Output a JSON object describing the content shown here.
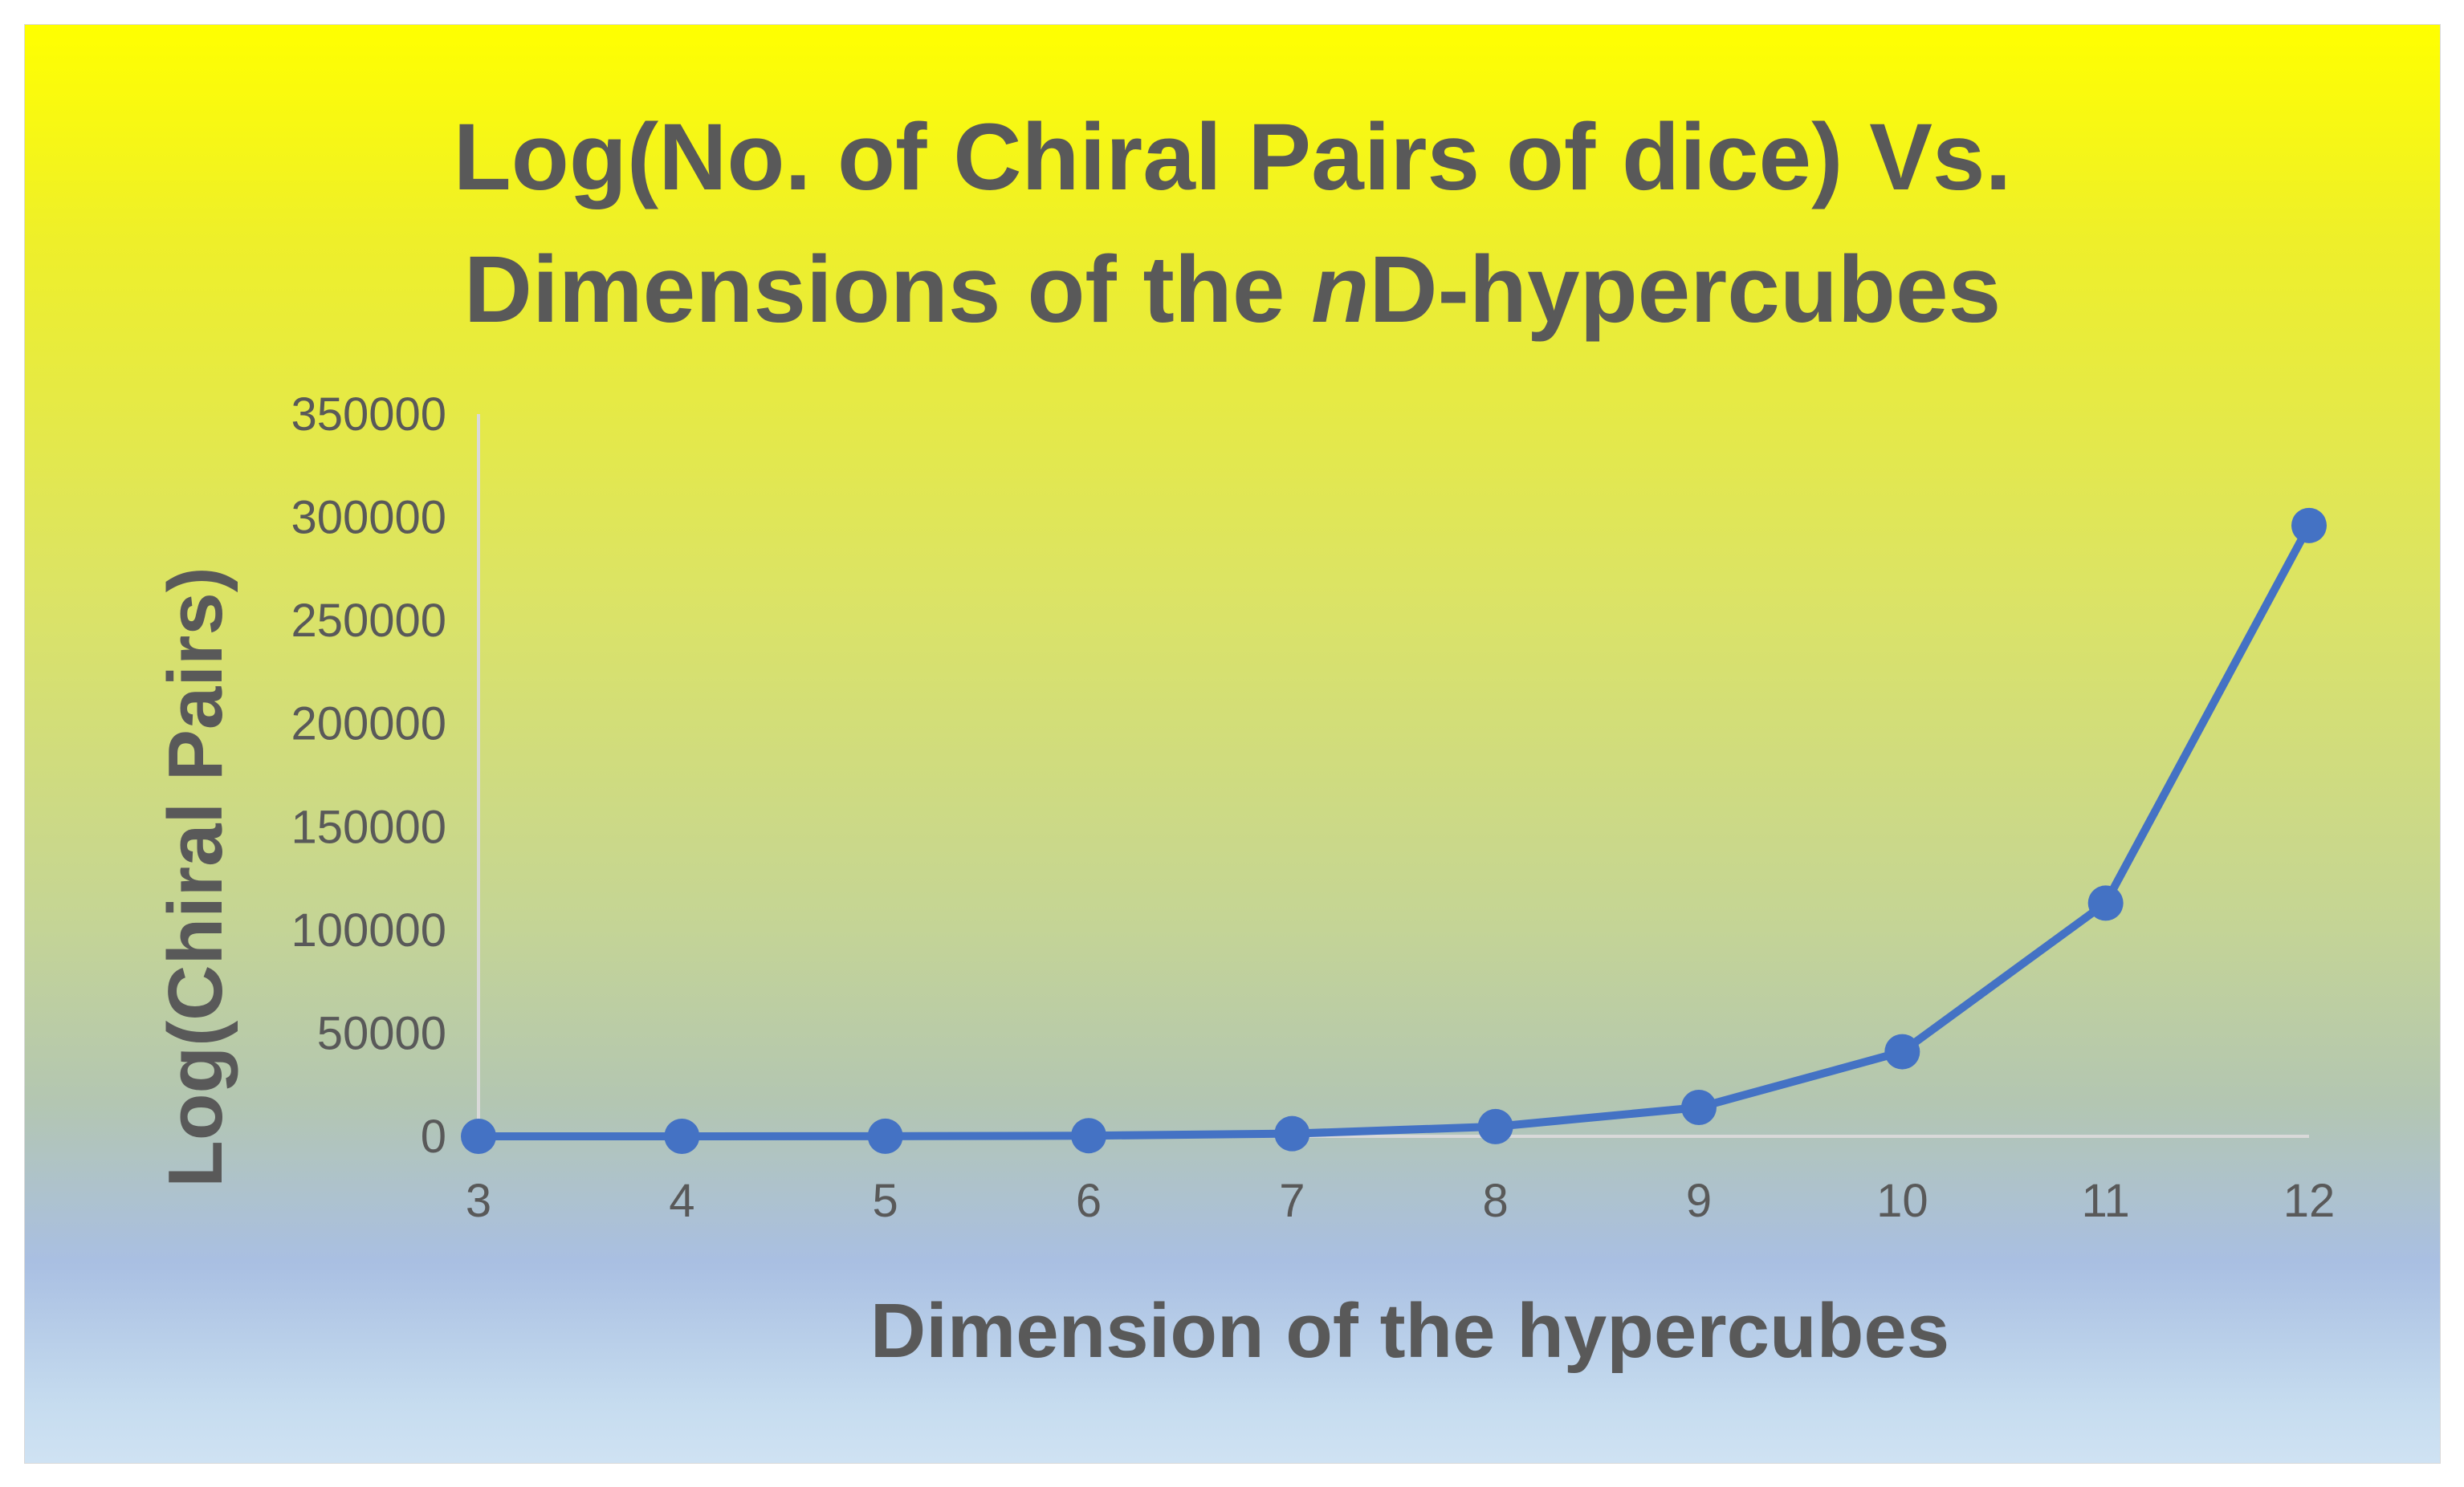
{
  "chart_data": {
    "type": "line",
    "title_line1": "Log(No. of Chiral Pairs of dice) Vs.",
    "title_line2_pre": "Dimensions of the ",
    "title_line2_italic": "n",
    "title_line2_post": "D-hypercubes",
    "xlabel": "Dimension of the hypercubes",
    "ylabel": "Log(Chiral  Pairs)",
    "x": [
      3,
      4,
      5,
      6,
      7,
      8,
      9,
      10,
      11,
      12
    ],
    "y": [
      0,
      5,
      40,
      300,
      1300,
      4700,
      14000,
      41000,
      113000,
      296000
    ],
    "ylim": [
      0,
      350000
    ],
    "yticks": [
      0,
      50000,
      100000,
      150000,
      200000,
      250000,
      300000,
      350000
    ],
    "grid": false,
    "legend": "none",
    "colors": {
      "series": "#4472c4",
      "text": "#595959",
      "axis": "#d9d9d9"
    }
  }
}
